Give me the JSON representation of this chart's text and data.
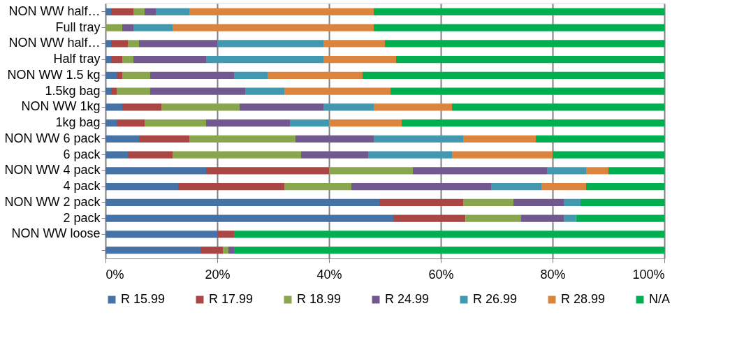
{
  "chart_data": {
    "type": "bar",
    "orientation": "horizontal",
    "stacked": true,
    "categories": [
      "NON WW half…",
      "Full tray",
      "NON WW half…",
      "Half tray",
      "NON WW 1.5 kg",
      "1.5kg bag",
      "NON WW 1kg",
      "1kg bag",
      "NON WW 6 pack",
      "6 pack",
      "NON WW 4 pack",
      "4 pack",
      "NON WW 2 pack",
      "2 pack",
      "NON WW loose",
      null
    ],
    "series": [
      {
        "name": "R 15.99",
        "color": "#4572a7",
        "values": [
          1,
          0,
          1,
          1,
          2,
          1,
          3,
          2,
          6,
          4,
          18,
          13,
          49,
          51.5,
          20,
          17
        ]
      },
      {
        "name": "R 17.99",
        "color": "#aa4643",
        "values": [
          4,
          0,
          3,
          2,
          1,
          1,
          7,
          5,
          9,
          8,
          22,
          19,
          15,
          12.9,
          3,
          4
        ]
      },
      {
        "name": "R 18.99",
        "color": "#89a54e",
        "values": [
          2,
          3,
          2,
          2,
          5,
          6,
          14,
          11,
          19,
          23,
          15,
          12,
          9,
          9.9,
          0,
          1
        ]
      },
      {
        "name": "R 24.99",
        "color": "#71588f",
        "values": [
          2,
          2,
          14,
          13,
          15,
          17,
          15,
          15,
          14,
          12,
          24,
          25,
          9,
          7.8,
          0,
          1
        ]
      },
      {
        "name": "R 26.99",
        "color": "#4198af",
        "values": [
          6,
          7,
          19,
          21,
          6,
          7,
          9,
          7,
          16,
          15,
          7,
          9,
          3,
          2.1,
          0,
          0
        ]
      },
      {
        "name": "R 28.99",
        "color": "#db843d",
        "values": [
          33,
          36,
          11,
          13,
          17,
          19,
          14,
          13,
          13,
          18,
          4,
          8,
          0,
          0,
          0,
          0
        ]
      },
      {
        "name": "N/A",
        "color": "#00b050",
        "values": [
          52,
          52,
          50,
          48,
          54,
          49,
          38,
          47,
          23,
          20,
          10,
          14,
          15,
          15.8,
          77,
          77
        ]
      }
    ],
    "xlim": [
      0,
      100
    ],
    "xticks": [
      {
        "value": 0,
        "label": "0%"
      },
      {
        "value": 20,
        "label": "20%"
      },
      {
        "value": 40,
        "label": "40%"
      },
      {
        "value": 60,
        "label": "60%"
      },
      {
        "value": 80,
        "label": "80%"
      },
      {
        "value": 100,
        "label": "100%"
      }
    ],
    "grid": "x",
    "legend": "bottom"
  }
}
